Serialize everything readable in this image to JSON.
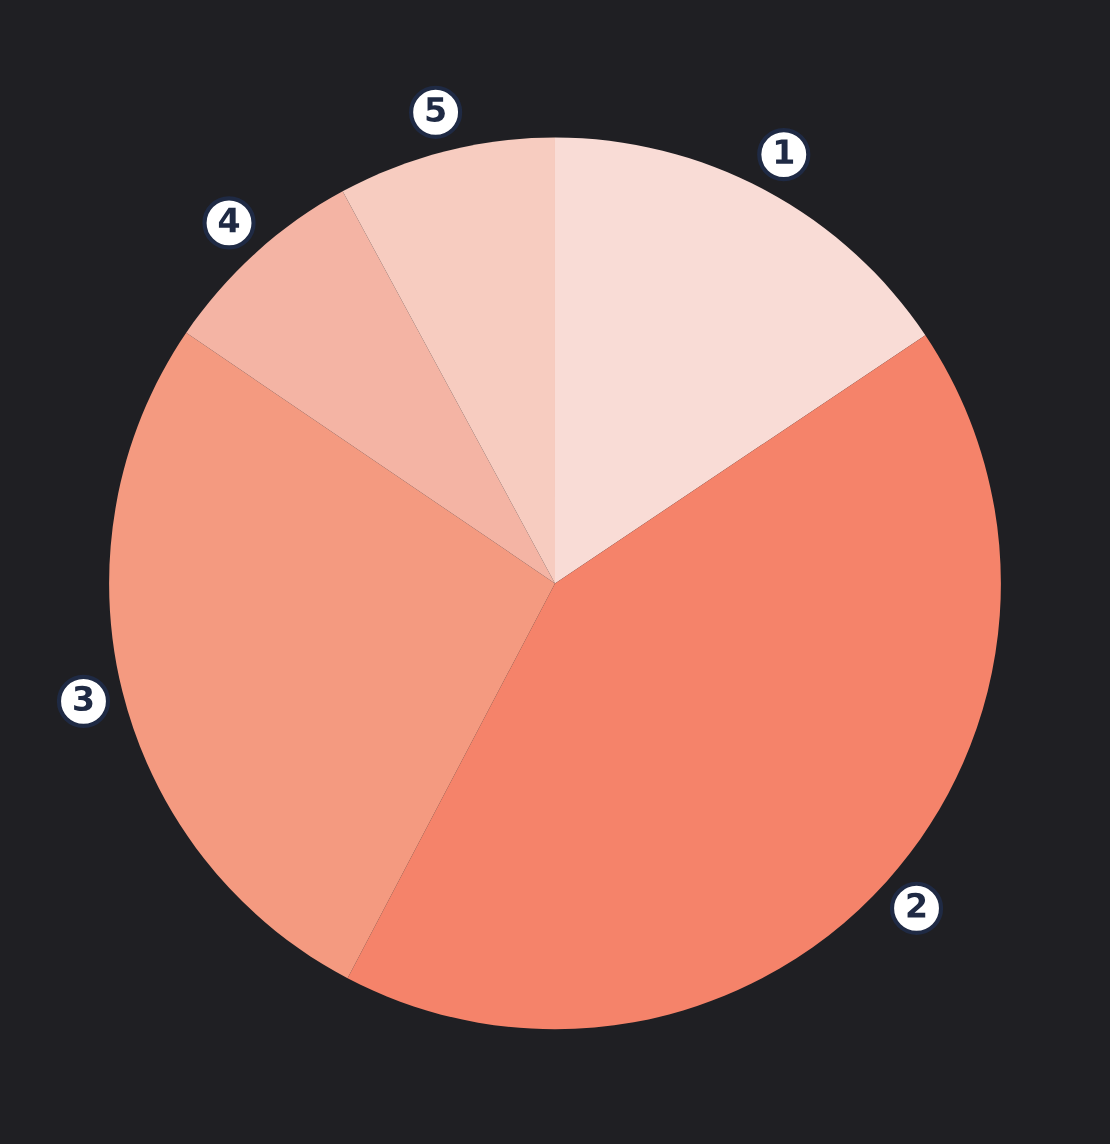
{
  "chart_data": {
    "type": "pie",
    "categories": [
      "1",
      "2",
      "3",
      "4",
      "5"
    ],
    "values": [
      15.6,
      42.1,
      26.8,
      7.6,
      7.9
    ],
    "colors": [
      "#f9dcd6",
      "#f5836a",
      "#f49a80",
      "#f4b4a4",
      "#f7ccc0"
    ]
  }
}
